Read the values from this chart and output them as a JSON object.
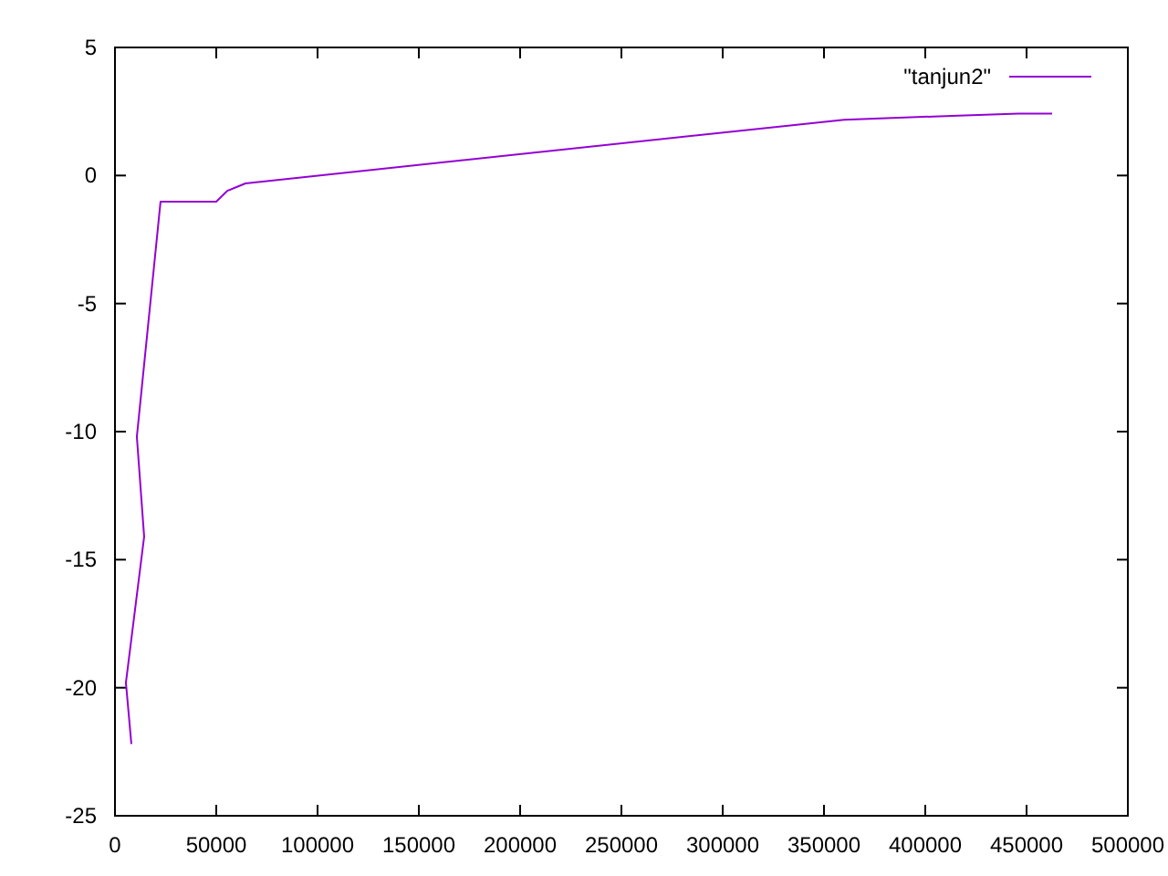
{
  "chart_data": {
    "type": "line",
    "x": [
      8100,
      5400,
      14400,
      10800,
      22500,
      50000,
      55400,
      64400,
      360000,
      413000,
      446000,
      462600
    ],
    "series": [
      {
        "name": "\"tanjun2\"",
        "color": "#9400d3",
        "values": [
          -22.2,
          -19.8,
          -14.1,
          -10.2,
          -1.02,
          -1.02,
          -0.6,
          -0.31,
          2.18,
          2.33,
          2.42,
          2.42
        ]
      }
    ],
    "xlim": [
      0,
      500000
    ],
    "xticks": [
      0,
      50000,
      100000,
      150000,
      200000,
      250000,
      300000,
      350000,
      400000,
      450000,
      500000
    ],
    "ylim": [
      -25,
      5
    ],
    "yticks": [
      -25,
      -20,
      -15,
      -10,
      -5,
      0,
      5
    ],
    "legend": "top right",
    "grid": false
  }
}
